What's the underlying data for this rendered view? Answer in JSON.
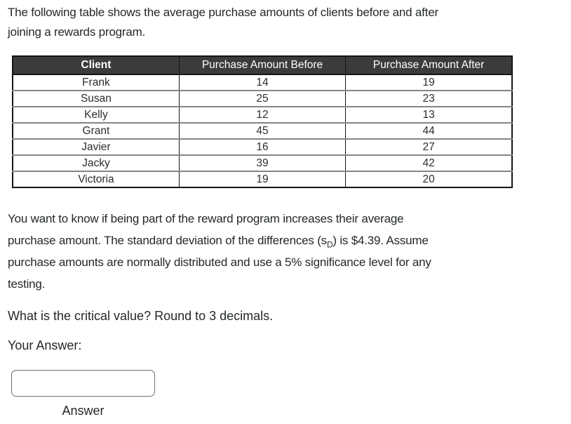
{
  "intro": {
    "line1": "The following table shows the average purchase amounts of clients before and after",
    "line2": "joining a rewards program."
  },
  "table": {
    "headers": [
      "Client",
      "Purchase Amount Before",
      "Purchase Amount After"
    ],
    "rows": [
      {
        "client": "Frank",
        "before": "14",
        "after": "19"
      },
      {
        "client": "Susan",
        "before": "25",
        "after": "23"
      },
      {
        "client": "Kelly",
        "before": "12",
        "after": "13"
      },
      {
        "client": "Grant",
        "before": "45",
        "after": "44"
      },
      {
        "client": "Javier",
        "before": "16",
        "after": "27"
      },
      {
        "client": "Jacky",
        "before": "39",
        "after": "42"
      },
      {
        "client": "Victoria",
        "before": "19",
        "after": "20"
      }
    ]
  },
  "scenario": {
    "line1": "You want to know if being part of the reward program increases their average",
    "line2_pre": "purchase amount. The standard deviation of the differences (s",
    "line2_sub": "D",
    "line2_post": ") is $4.39. Assume",
    "line3": "purchase amounts are normally distributed and use a 5% significance level for any",
    "line4": "testing."
  },
  "question": "What is the critical value? Round to 3 decimals.",
  "answer_section": {
    "label": "Your Answer:",
    "input_value": "",
    "caption": "Answer"
  },
  "colors": {
    "header_bg": "#3b3b3b",
    "header_text": "#ffffff",
    "row_divider": "#848587",
    "table_border": "#151515",
    "body_text": "#24282a",
    "input_border": "#6b7174"
  }
}
